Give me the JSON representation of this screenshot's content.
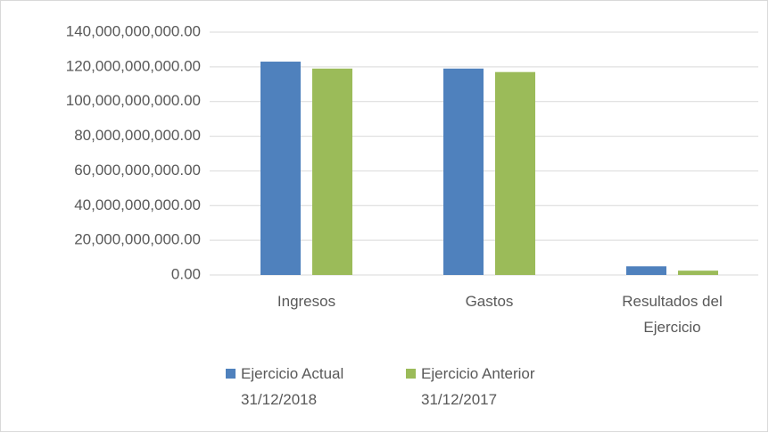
{
  "chart_data": {
    "type": "bar",
    "categories": [
      "Ingresos",
      "Gastos",
      "Resultados del Ejercicio"
    ],
    "series": [
      {
        "name": "Ejercicio Actual 31/12/2018",
        "color": "#4f81bd",
        "values": [
          123000000000,
          119000000000,
          5000000000
        ]
      },
      {
        "name": "Ejercicio Anterior 31/12/2017",
        "color": "#9bbb59",
        "values": [
          119000000000,
          117000000000,
          2500000000
        ]
      }
    ],
    "ylim": [
      0,
      140000000000
    ],
    "yticks": [
      {
        "value": 0,
        "label": "0.00"
      },
      {
        "value": 20000000000,
        "label": "20,000,000,000.00"
      },
      {
        "value": 40000000000,
        "label": "40,000,000,000.00"
      },
      {
        "value": 60000000000,
        "label": "60,000,000,000.00"
      },
      {
        "value": 80000000000,
        "label": "80,000,000,000.00"
      },
      {
        "value": 100000000000,
        "label": "100,000,000,000.00"
      },
      {
        "value": 120000000000,
        "label": "120,000,000,000.00"
      },
      {
        "value": 140000000000,
        "label": "140,000,000,000.00"
      }
    ],
    "grid": true,
    "legend": "bottom"
  }
}
